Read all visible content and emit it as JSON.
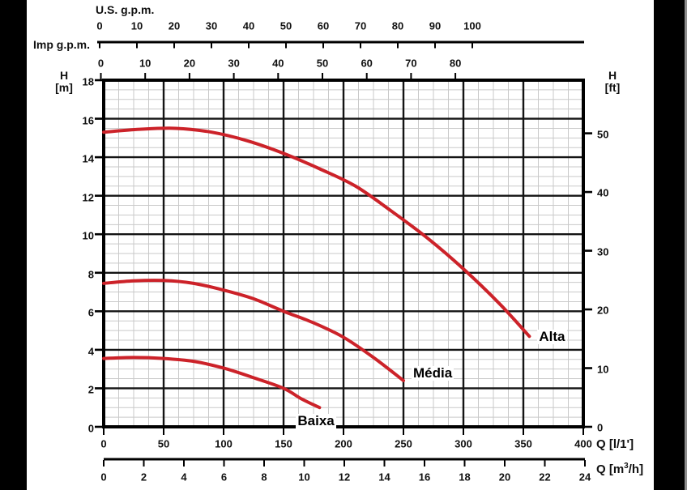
{
  "axes": {
    "us_gpm": {
      "label": "U.S. g.p.m.",
      "ticks": [
        0,
        10,
        20,
        30,
        40,
        50,
        60,
        70,
        80,
        90,
        100
      ]
    },
    "imp_gpm": {
      "label": "Imp g.p.m.",
      "ticks": [
        0,
        10,
        20,
        30,
        40,
        50,
        60,
        70,
        80
      ]
    },
    "h_m": {
      "label_parts": {
        "line1": "H",
        "line2": "[m]"
      },
      "ticks": [
        18,
        16,
        14,
        12,
        10,
        8,
        6,
        4,
        2,
        0
      ]
    },
    "h_ft": {
      "label_parts": {
        "line1": "H",
        "line2": "[ft]"
      },
      "ticks": [
        50,
        40,
        30,
        20,
        10,
        0
      ]
    },
    "q_lmin": {
      "label": "Q [l/1']",
      "ticks": [
        0,
        50,
        100,
        150,
        200,
        250,
        300,
        350,
        400
      ]
    },
    "q_m3h": {
      "label": "Q [m³/h]",
      "label_parts": {
        "prefix": "Q [m",
        "sup": "3",
        "suffix": "/h]"
      },
      "ticks": [
        0,
        2,
        4,
        6,
        8,
        10,
        12,
        14,
        16,
        18,
        20,
        22,
        24
      ]
    }
  },
  "chart_data": {
    "type": "line",
    "title": "",
    "x_axes": [
      {
        "label": "Q [l/1']",
        "unit": "l/min",
        "range": [
          0,
          400
        ],
        "major_step": 50,
        "minor_step": 12.5,
        "position": "bottom"
      },
      {
        "label": "Q [m³/h]",
        "unit": "m3/h",
        "range": [
          0,
          24
        ],
        "major_step": 2,
        "position": "bottom-secondary"
      },
      {
        "label": "U.S. g.p.m.",
        "unit": "US gpm",
        "range": [
          0,
          100
        ],
        "major_step": 10,
        "position": "top"
      },
      {
        "label": "Imp g.p.m.",
        "unit": "Imp gpm",
        "range": [
          0,
          80
        ],
        "major_step": 10,
        "position": "top-secondary"
      }
    ],
    "y_axes": [
      {
        "label": "H [m]",
        "unit": "m",
        "range": [
          0,
          18
        ],
        "major_step": 2,
        "minor_step": 0.5,
        "position": "left"
      },
      {
        "label": "H [ft]",
        "unit": "ft",
        "range": [
          0,
          50
        ],
        "major_step": 10,
        "position": "right"
      }
    ],
    "grid": "major+minor",
    "curve_color": "#cc2229",
    "series": [
      {
        "name": "Alta",
        "points": [
          [
            0,
            15.3
          ],
          [
            30,
            15.45
          ],
          [
            60,
            15.5
          ],
          [
            90,
            15.3
          ],
          [
            120,
            14.85
          ],
          [
            150,
            14.2
          ],
          [
            180,
            13.4
          ],
          [
            210,
            12.5
          ],
          [
            240,
            11.2
          ],
          [
            270,
            9.8
          ],
          [
            300,
            8.2
          ],
          [
            330,
            6.4
          ],
          [
            355,
            4.7
          ]
        ]
      },
      {
        "name": "Média",
        "points": [
          [
            0,
            7.45
          ],
          [
            25,
            7.58
          ],
          [
            50,
            7.6
          ],
          [
            75,
            7.45
          ],
          [
            100,
            7.1
          ],
          [
            125,
            6.65
          ],
          [
            150,
            6.0
          ],
          [
            175,
            5.4
          ],
          [
            200,
            4.65
          ],
          [
            225,
            3.6
          ],
          [
            250,
            2.4
          ]
        ]
      },
      {
        "name": "Baixa",
        "points": [
          [
            0,
            3.55
          ],
          [
            25,
            3.6
          ],
          [
            50,
            3.55
          ],
          [
            75,
            3.4
          ],
          [
            100,
            3.05
          ],
          [
            125,
            2.55
          ],
          [
            150,
            2.0
          ],
          [
            165,
            1.45
          ],
          [
            180,
            1.0
          ]
        ]
      }
    ]
  },
  "colors": {
    "curve": "#cc2229",
    "grid_major": "#141414",
    "grid_minor": "#c9c9c9",
    "plot_border": "#000000",
    "text": "#111111",
    "side_bars": "#000000"
  }
}
